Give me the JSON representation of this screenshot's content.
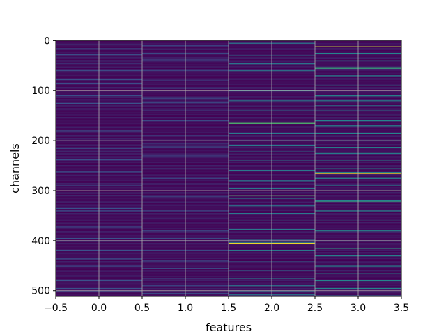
{
  "chart_data": {
    "type": "heatmap",
    "title": "",
    "xlabel": "features",
    "ylabel": "channels",
    "xlim": [
      -0.5,
      3.5
    ],
    "ylim": [
      511.5,
      -0.5
    ],
    "n_rows": 512,
    "n_cols": 4,
    "x_ticks": [
      "−0.5",
      "0.0",
      "0.5",
      "1.0",
      "1.5",
      "2.0",
      "2.5",
      "3.0",
      "3.5"
    ],
    "x_tick_values": [
      -0.5,
      0.0,
      0.5,
      1.0,
      1.5,
      2.0,
      2.5,
      3.0,
      3.5
    ],
    "y_ticks": [
      "0",
      "100",
      "200",
      "300",
      "400",
      "500"
    ],
    "y_tick_values": [
      0,
      100,
      200,
      300,
      400,
      500
    ],
    "grid": true,
    "colormap": "viridis",
    "background_color": "#440154",
    "bright_rows": [
      {
        "col": 0,
        "rows": [
          8,
          16,
          28,
          45,
          60,
          78,
          85,
          110,
          125,
          150,
          180,
          195,
          215,
          222,
          238,
          262,
          290,
          310,
          335,
          340,
          360,
          372,
          395,
          420,
          436,
          450,
          470,
          480,
          495,
          500
        ],
        "intensity": 0.25
      },
      {
        "col": 1,
        "rows": [
          10,
          25,
          38,
          60,
          80,
          95,
          115,
          122,
          124,
          140,
          160,
          190,
          205,
          212,
          230,
          255,
          275,
          300,
          312,
          340,
          355,
          380,
          395,
          420,
          440,
          455,
          475,
          490,
          505
        ],
        "intensity": 0.22
      },
      {
        "col": 2,
        "rows": [
          5,
          30,
          46,
          60,
          100,
          120,
          140,
          165,
          185,
          200,
          210,
          222,
          240,
          260,
          280,
          295,
          310,
          315,
          330,
          345,
          360,
          377,
          397,
          403,
          420,
          442,
          460,
          475,
          490,
          500,
          508
        ],
        "intensity": 0.4
      },
      {
        "col": 3,
        "rows": [
          12,
          25,
          40,
          55,
          70,
          90,
          110,
          120,
          130,
          140,
          150,
          160,
          170,
          185,
          200,
          213,
          225,
          240,
          255,
          263,
          275,
          290,
          300,
          320,
          340,
          360,
          380,
          400,
          415,
          430,
          450,
          465,
          480,
          495,
          510
        ],
        "intensity": 0.45
      }
    ],
    "peak_rows": [
      {
        "col": 2,
        "row": 165,
        "value": 0.7
      },
      {
        "col": 2,
        "row": 310,
        "value": 0.85
      },
      {
        "col": 2,
        "row": 405,
        "value": 1.0
      },
      {
        "col": 3,
        "row": 12,
        "value": 0.95
      },
      {
        "col": 3,
        "row": 55,
        "value": 0.6
      },
      {
        "col": 3,
        "row": 265,
        "value": 1.0
      },
      {
        "col": 3,
        "row": 322,
        "value": 0.6
      },
      {
        "col": 3,
        "row": 415,
        "value": 0.55
      }
    ]
  }
}
